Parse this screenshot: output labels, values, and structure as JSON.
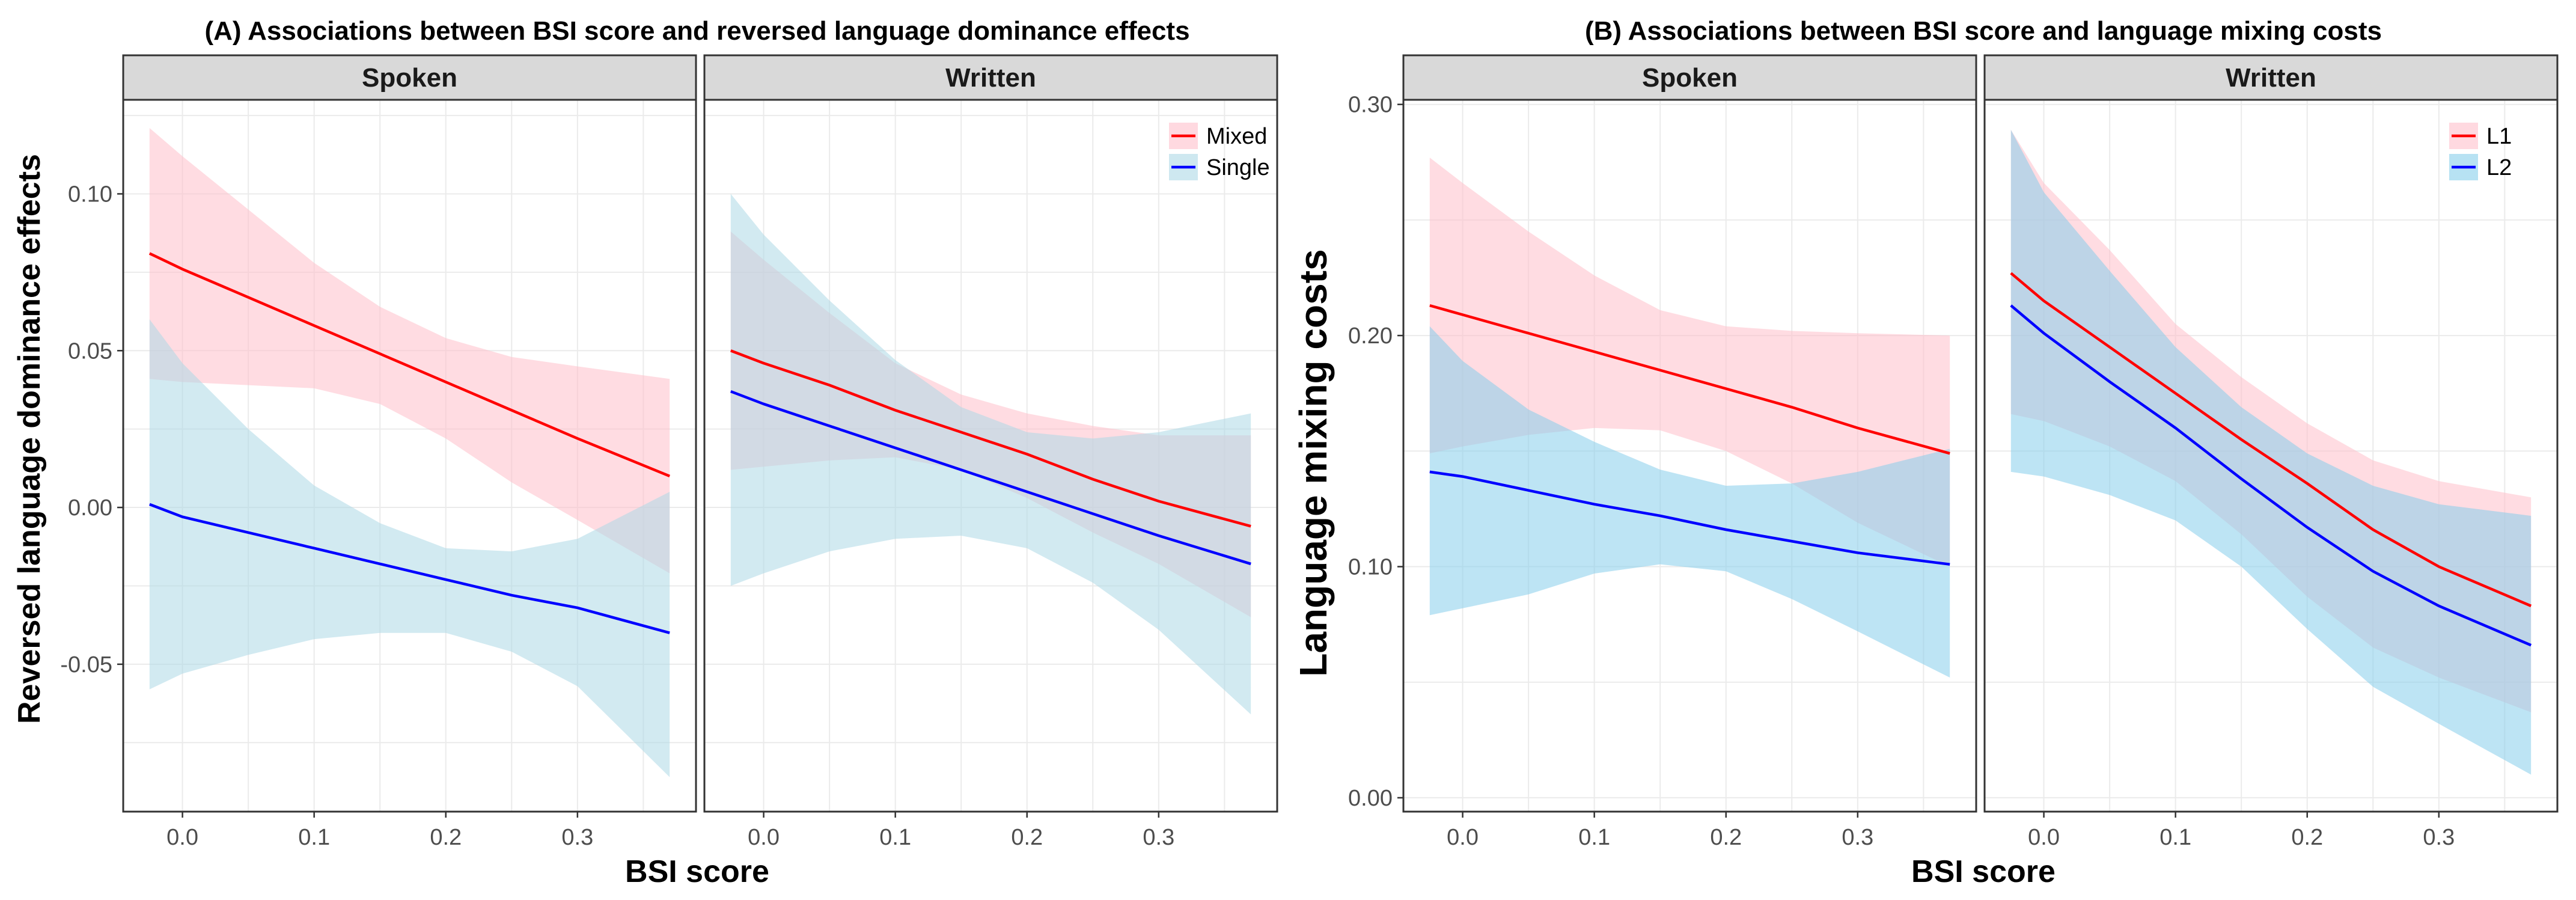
{
  "chart_data": [
    {
      "type": "line",
      "title": "(A) Associations between BSI score and reversed language dominance effects",
      "xlabel": "BSI score",
      "ylabel": "Reversed language dominance effects",
      "xlim": [
        -0.045,
        0.39
      ],
      "ylim": [
        -0.097,
        0.13
      ],
      "xticks": [
        "0.0",
        "0.1",
        "0.2",
        "0.3"
      ],
      "xtick_values": [
        0.0,
        0.1,
        0.2,
        0.3
      ],
      "yticks": [
        "-0.05",
        "0.00",
        "0.05",
        "0.10"
      ],
      "ytick_values": [
        -0.05,
        0.0,
        0.05,
        0.1
      ],
      "grid": true,
      "legend": {
        "position": "top-right",
        "entries": [
          "Mixed",
          "Single"
        ]
      },
      "panels": [
        {
          "name": "Spoken",
          "series": [
            {
              "name": "Mixed",
              "color": "#ff0000",
              "band_color": "#ffc0cb",
              "x": [
                -0.025,
                0.0,
                0.05,
                0.1,
                0.15,
                0.2,
                0.25,
                0.3,
                0.37
              ],
              "y": [
                0.081,
                0.076,
                0.067,
                0.058,
                0.049,
                0.04,
                0.031,
                0.022,
                0.01
              ],
              "lower": [
                0.041,
                0.04,
                0.039,
                0.038,
                0.033,
                0.022,
                0.008,
                -0.004,
                -0.021
              ],
              "upper": [
                0.121,
                0.112,
                0.095,
                0.078,
                0.064,
                0.054,
                0.048,
                0.045,
                0.041
              ]
            },
            {
              "name": "Single",
              "color": "#0000ff",
              "band_color": "#add8e6",
              "x": [
                -0.025,
                0.0,
                0.05,
                0.1,
                0.15,
                0.2,
                0.25,
                0.3,
                0.37
              ],
              "y": [
                0.001,
                -0.003,
                -0.008,
                -0.013,
                -0.018,
                -0.023,
                -0.028,
                -0.032,
                -0.04
              ],
              "lower": [
                -0.058,
                -0.053,
                -0.047,
                -0.042,
                -0.04,
                -0.04,
                -0.046,
                -0.057,
                -0.086
              ],
              "upper": [
                0.06,
                0.046,
                0.025,
                0.007,
                -0.005,
                -0.013,
                -0.014,
                -0.01,
                0.005
              ]
            }
          ]
        },
        {
          "name": "Written",
          "series": [
            {
              "name": "Mixed",
              "color": "#ff0000",
              "band_color": "#ffc0cb",
              "x": [
                -0.025,
                0.0,
                0.05,
                0.1,
                0.15,
                0.2,
                0.25,
                0.3,
                0.37
              ],
              "y": [
                0.05,
                0.046,
                0.039,
                0.031,
                0.024,
                0.017,
                0.009,
                0.002,
                -0.006
              ],
              "lower": [
                0.012,
                0.013,
                0.015,
                0.016,
                0.012,
                0.003,
                -0.008,
                -0.018,
                -0.035
              ],
              "upper": [
                0.088,
                0.079,
                0.062,
                0.046,
                0.036,
                0.03,
                0.026,
                0.023,
                0.023
              ]
            },
            {
              "name": "Single",
              "color": "#0000ff",
              "band_color": "#add8e6",
              "x": [
                -0.025,
                0.0,
                0.05,
                0.1,
                0.15,
                0.2,
                0.25,
                0.3,
                0.37
              ],
              "y": [
                0.037,
                0.033,
                0.026,
                0.019,
                0.012,
                0.005,
                -0.002,
                -0.009,
                -0.018
              ],
              "lower": [
                -0.025,
                -0.021,
                -0.014,
                -0.01,
                -0.009,
                -0.013,
                -0.024,
                -0.039,
                -0.066
              ],
              "upper": [
                0.1,
                0.087,
                0.066,
                0.047,
                0.032,
                0.024,
                0.022,
                0.024,
                0.03
              ]
            }
          ]
        }
      ]
    },
    {
      "type": "line",
      "title": "(B) Associations between BSI score and language mixing costs",
      "xlabel": "BSI score",
      "ylabel": "Language mixing costs",
      "xlim": [
        -0.045,
        0.39
      ],
      "ylim": [
        -0.006,
        0.302
      ],
      "xticks": [
        "0.0",
        "0.1",
        "0.2",
        "0.3"
      ],
      "xtick_values": [
        0.0,
        0.1,
        0.2,
        0.3
      ],
      "yticks": [
        "0.00",
        "0.10",
        "0.20",
        "0.30"
      ],
      "ytick_values": [
        0.0,
        0.1,
        0.2,
        0.3
      ],
      "grid": true,
      "legend": {
        "position": "top-right",
        "entries": [
          "L1",
          "L2"
        ]
      },
      "panels": [
        {
          "name": "Spoken",
          "series": [
            {
              "name": "L1",
              "color": "#ff0000",
              "band_color": "#ffc0cb",
              "x": [
                -0.025,
                0.0,
                0.05,
                0.1,
                0.15,
                0.2,
                0.25,
                0.3,
                0.37
              ],
              "y": [
                0.213,
                0.209,
                0.201,
                0.193,
                0.185,
                0.177,
                0.169,
                0.16,
                0.149
              ],
              "lower": [
                0.149,
                0.152,
                0.157,
                0.16,
                0.159,
                0.15,
                0.136,
                0.119,
                0.1
              ],
              "upper": [
                0.277,
                0.266,
                0.245,
                0.226,
                0.211,
                0.204,
                0.202,
                0.201,
                0.2
              ]
            },
            {
              "name": "L2",
              "color": "#0000ff",
              "band_color": "#87ceeb",
              "x": [
                -0.025,
                0.0,
                0.05,
                0.1,
                0.15,
                0.2,
                0.25,
                0.3,
                0.37
              ],
              "y": [
                0.141,
                0.139,
                0.133,
                0.127,
                0.122,
                0.116,
                0.111,
                0.106,
                0.101
              ],
              "lower": [
                0.079,
                0.082,
                0.088,
                0.097,
                0.101,
                0.098,
                0.086,
                0.072,
                0.052
              ],
              "upper": [
                0.204,
                0.189,
                0.168,
                0.154,
                0.142,
                0.135,
                0.136,
                0.141,
                0.151
              ]
            }
          ]
        },
        {
          "name": "Written",
          "series": [
            {
              "name": "L1",
              "color": "#ff0000",
              "band_color": "#ffc0cb",
              "x": [
                -0.025,
                0.0,
                0.05,
                0.1,
                0.15,
                0.2,
                0.25,
                0.3,
                0.37
              ],
              "y": [
                0.227,
                0.215,
                0.195,
                0.175,
                0.155,
                0.136,
                0.116,
                0.1,
                0.083
              ],
              "lower": [
                0.166,
                0.163,
                0.152,
                0.137,
                0.114,
                0.087,
                0.065,
                0.052,
                0.037
              ],
              "upper": [
                0.289,
                0.266,
                0.237,
                0.205,
                0.182,
                0.162,
                0.146,
                0.137,
                0.13
              ]
            },
            {
              "name": "L2",
              "color": "#0000ff",
              "band_color": "#87ceeb",
              "x": [
                -0.025,
                0.0,
                0.05,
                0.1,
                0.15,
                0.2,
                0.25,
                0.3,
                0.37
              ],
              "y": [
                0.213,
                0.201,
                0.18,
                0.16,
                0.138,
                0.117,
                0.098,
                0.083,
                0.066
              ],
              "lower": [
                0.141,
                0.139,
                0.131,
                0.12,
                0.1,
                0.073,
                0.048,
                0.032,
                0.01
              ],
              "upper": [
                0.289,
                0.262,
                0.228,
                0.195,
                0.169,
                0.149,
                0.135,
                0.127,
                0.122
              ]
            }
          ]
        }
      ]
    }
  ]
}
